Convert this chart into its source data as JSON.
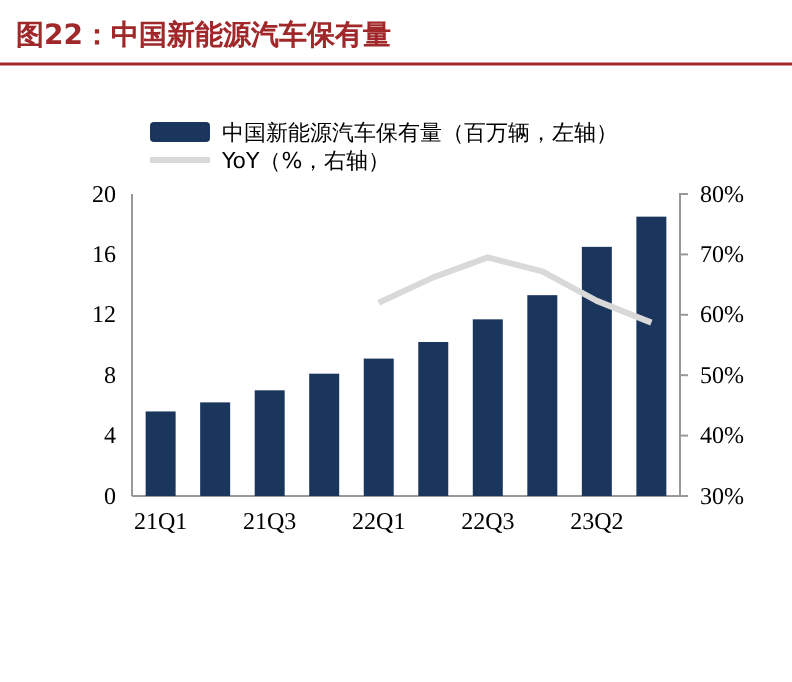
{
  "chart_data": {
    "type": "bar",
    "title": "图22：中国新能源汽车保有量",
    "categories": [
      "21Q1",
      null,
      "21Q3",
      null,
      "22Q1",
      null,
      "22Q3",
      null,
      "23Q2",
      null
    ],
    "series": [
      {
        "name": "中国新能源汽车保有量（百万辆，左轴）",
        "color": "#1b365d",
        "values": [
          5.6,
          6.2,
          7.0,
          8.1,
          9.1,
          10.2,
          11.7,
          13.3,
          16.5,
          18.5
        ]
      },
      {
        "name": "YoY（%，右轴）",
        "type": "line",
        "axis": "y2",
        "color": "#d9d9d9",
        "values": [
          null,
          null,
          null,
          null,
          62.0,
          66.2,
          69.5,
          67.2,
          62.3,
          58.7
        ]
      }
    ],
    "ylim": [
      0,
      20
    ],
    "yticks": [
      0,
      4,
      8,
      12,
      16,
      20
    ],
    "y2lim": [
      30,
      80
    ],
    "y2ticks": [
      {
        "value": 30,
        "label": "30%"
      },
      {
        "value": 40,
        "label": "40%"
      },
      {
        "value": 50,
        "label": "50%"
      },
      {
        "value": 60,
        "label": "60%"
      },
      {
        "value": 70,
        "label": "70%"
      },
      {
        "value": 80,
        "label": "80%"
      }
    ],
    "grid": false,
    "legend": "top left",
    "marker": "none",
    "line_style": "solid"
  }
}
